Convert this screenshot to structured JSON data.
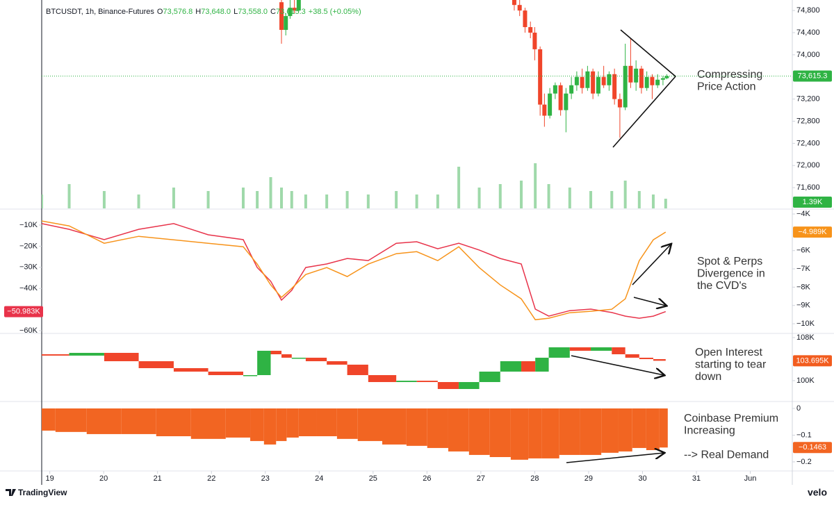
{
  "chart_data": [
    {
      "type": "candlestick",
      "title": "BTCUSDT, 1h, Binance-Futures",
      "ohlc": [
        {
          "key": "O",
          "text": "73,576.8"
        },
        {
          "key": "H",
          "text": "73,648.0"
        },
        {
          "key": "L",
          "text": "73,558.0"
        },
        {
          "key": "C",
          "text": "73,615.3"
        }
      ],
      "change": "+38.5 (+0.05%)",
      "xlim": [
        18.85,
        32.78
      ],
      "x": [
        23.3,
        23.38,
        23.46,
        23.54,
        23.62,
        27.62,
        27.72,
        27.82,
        27.92,
        28.0,
        28.1,
        28.18,
        28.28,
        28.38,
        28.48,
        28.58,
        28.68,
        28.78,
        28.88,
        28.98,
        29.08,
        29.18,
        29.28,
        29.38,
        29.48,
        29.58,
        29.68,
        29.78,
        29.88,
        29.98,
        30.08,
        30.18,
        30.28,
        30.38,
        30.45
      ],
      "open": [
        74950,
        74450,
        74700,
        74850,
        74800,
        75100,
        74900,
        74800,
        74500,
        74400,
        74100,
        73100,
        72900,
        73300,
        73450,
        73000,
        73300,
        73450,
        73600,
        73400,
        73700,
        73300,
        73600,
        73450,
        73650,
        73200,
        73050,
        73800,
        73500,
        73750,
        73400,
        73600,
        73450,
        73550,
        73576.8
      ],
      "high": [
        75100,
        74750,
        75000,
        75100,
        75100,
        75200,
        75000,
        74850,
        74600,
        74500,
        74150,
        73300,
        73400,
        73500,
        73500,
        73400,
        73600,
        73700,
        73750,
        73800,
        73750,
        73700,
        73800,
        73700,
        73750,
        73300,
        74200,
        74300,
        73900,
        73800,
        73700,
        73650,
        73650,
        73620,
        73648
      ],
      "low": [
        74200,
        74350,
        74650,
        74750,
        74780,
        74800,
        74700,
        74400,
        74300,
        73900,
        72900,
        72700,
        72850,
        73200,
        72900,
        72600,
        73200,
        73350,
        73300,
        73350,
        73200,
        73250,
        73400,
        73350,
        73100,
        72500,
        73000,
        73400,
        73350,
        73300,
        73350,
        73200,
        73400,
        73450,
        73558
      ],
      "close": [
        74450,
        74700,
        74850,
        74800,
        75000,
        74900,
        74800,
        74500,
        74400,
        74100,
        73100,
        72900,
        73300,
        73450,
        73000,
        73300,
        73450,
        73600,
        73400,
        73700,
        73300,
        73600,
        73450,
        73650,
        73200,
        73050,
        73800,
        73500,
        73750,
        73400,
        73600,
        73450,
        73550,
        73576.8,
        73615.3
      ],
      "up_color": "#2fb344",
      "down_color": "#f0452a",
      "ylim": [
        71225,
        74990
      ],
      "yticks": [
        {
          "value": 71600,
          "label": "71,600"
        },
        {
          "value": 72000,
          "label": "72,000"
        },
        {
          "value": 72400,
          "label": "72,400"
        },
        {
          "value": 72800,
          "label": "72,800"
        },
        {
          "value": 73200,
          "label": "73,200"
        },
        {
          "value": 73600,
          "label": "73,600"
        },
        {
          "value": 74000,
          "label": "74,000"
        },
        {
          "value": 74400,
          "label": "74,400"
        },
        {
          "value": 74800,
          "label": "74,800"
        }
      ],
      "last_value_label": "73,615.3",
      "volume": {
        "x": [
          18.85,
          19.36,
          20.01,
          20.65,
          21.3,
          21.94,
          22.59,
          22.85,
          23.1,
          23.3,
          23.49,
          23.75,
          24.14,
          24.52,
          24.91,
          25.43,
          25.81,
          26.2,
          26.59,
          26.97,
          27.36,
          27.75,
          28.01,
          28.26,
          28.65,
          29.04,
          29.43,
          29.68,
          29.94,
          30.2,
          30.43
        ],
        "values": [
          2.0,
          3.5,
          2.5,
          2.0,
          3.0,
          2.5,
          3.0,
          2.5,
          4.5,
          3.0,
          2.5,
          2.0,
          2.0,
          2.5,
          2.0,
          2.5,
          2.0,
          2.0,
          6.0,
          3.0,
          3.5,
          4.0,
          6.5,
          3.5,
          3.0,
          2.5,
          2.5,
          4.0,
          2.5,
          2.0,
          1.39
        ],
        "color": "#9fd9aa",
        "last_value_label": "1.39K"
      },
      "annotation": [
        "Compressing",
        "Price Action"
      ]
    },
    {
      "type": "line",
      "xlim": [
        18.85,
        32.78
      ],
      "x": [
        18.85,
        19.36,
        20.01,
        20.65,
        21.3,
        21.94,
        22.59,
        22.85,
        23.1,
        23.3,
        23.49,
        23.75,
        24.14,
        24.52,
        24.91,
        25.43,
        25.81,
        26.2,
        26.59,
        26.97,
        27.36,
        27.75,
        28.01,
        28.26,
        28.65,
        29.04,
        29.43,
        29.68,
        29.94,
        30.2,
        30.43
      ],
      "series": [
        {
          "color": "#e8334a",
          "axis": "y",
          "last_value_label": "−50.983K",
          "values": [
            -9.3,
            -12.0,
            -16.9,
            -12.0,
            -9.3,
            -14.6,
            -16.9,
            -30.1,
            -36.6,
            -45.5,
            -40.9,
            -30.1,
            -28.4,
            -25.8,
            -26.8,
            -18.6,
            -17.9,
            -21.2,
            -18.6,
            -21.8,
            -25.8,
            -28.4,
            -49.8,
            -53.1,
            -50.5,
            -49.8,
            -51.4,
            -53.1,
            -54.1,
            -53.1,
            -50.983
          ]
        },
        {
          "color": "#f7931a",
          "axis": "y2",
          "last_value_label": "−4.989K",
          "values": [
            -4.38,
            -4.65,
            -5.6,
            -5.22,
            -5.41,
            -5.6,
            -5.79,
            -6.74,
            -7.88,
            -8.56,
            -8.07,
            -7.31,
            -6.93,
            -7.42,
            -6.74,
            -6.17,
            -6.06,
            -6.55,
            -5.79,
            -6.93,
            -7.88,
            -8.64,
            -9.78,
            -9.7,
            -9.4,
            -9.32,
            -9.21,
            -8.64,
            -6.55,
            -5.41,
            -4.989
          ]
        }
      ],
      "ylim": [
        -61.3,
        -2.76
      ],
      "yticks": [
        {
          "value": -10,
          "label": "−10K"
        },
        {
          "value": -20,
          "label": "−20K"
        },
        {
          "value": -30,
          "label": "−30K"
        },
        {
          "value": -40,
          "label": "−40K"
        },
        {
          "value": -60,
          "label": "−60K"
        }
      ],
      "y2lim": [
        -10.53,
        -3.77
      ],
      "y2ticks": [
        {
          "value": -4,
          "label": "−4K"
        },
        {
          "value": -6,
          "label": "−6K"
        },
        {
          "value": -7,
          "label": "−7K"
        },
        {
          "value": -8,
          "label": "−8K"
        },
        {
          "value": -9,
          "label": "−9K"
        },
        {
          "value": -10,
          "label": "−10K"
        }
      ],
      "annotation": [
        "Spot & Perps",
        "Divergence in",
        "the CVD's"
      ]
    },
    {
      "type": "step",
      "xlim": [
        18.85,
        32.78
      ],
      "x": [
        18.85,
        19.36,
        20.01,
        20.65,
        21.3,
        21.94,
        22.59,
        22.85,
        23.1,
        23.3,
        23.49,
        23.75,
        24.14,
        24.52,
        24.91,
        25.43,
        25.81,
        26.2,
        26.59,
        26.97,
        27.36,
        27.75,
        28.01,
        28.26,
        28.65,
        29.04,
        29.43,
        29.68,
        29.94,
        30.2,
        30.43
      ],
      "values": [
        104.9,
        104.65,
        105.16,
        103.61,
        102.32,
        101.68,
        101.03,
        101.03,
        105.55,
        104.9,
        104.26,
        104.26,
        103.61,
        102.97,
        101.03,
        99.74,
        99.99,
        99.74,
        98.45,
        99.74,
        101.68,
        103.61,
        101.68,
        104.26,
        106.19,
        105.55,
        106.19,
        104.9,
        104.26,
        104.0,
        103.695
      ],
      "up_color": "#2fb344",
      "down_color": "#f0452a",
      "label_color": "#f25c1e",
      "ylim": [
        96.13,
        108.77
      ],
      "yticks": [
        {
          "value": 108,
          "label": "108K"
        },
        {
          "value": 100,
          "label": "100K"
        }
      ],
      "last_value_label": "103.695K",
      "annotation": [
        "Open Interest",
        "starting to tear",
        "down"
      ]
    },
    {
      "type": "bar",
      "xlim": [
        18.85,
        32.78
      ],
      "xticks": [
        19,
        20,
        21,
        22,
        23,
        24,
        25,
        26,
        27,
        28,
        29,
        30,
        31,
        {
          "value": 32,
          "label": "Jun"
        }
      ],
      "x": [
        18.85,
        19.36,
        20.01,
        20.65,
        21.3,
        21.94,
        22.59,
        22.85,
        23.1,
        23.3,
        23.49,
        23.75,
        24.14,
        24.52,
        24.91,
        25.43,
        25.81,
        26.2,
        26.59,
        26.97,
        27.36,
        27.75,
        28.01,
        28.26,
        28.65,
        29.04,
        29.43,
        29.68,
        29.94,
        30.2,
        30.43
      ],
      "values": [
        -0.083,
        -0.088,
        -0.096,
        -0.096,
        -0.104,
        -0.114,
        -0.109,
        -0.122,
        -0.135,
        -0.122,
        -0.109,
        -0.104,
        -0.104,
        -0.114,
        -0.122,
        -0.135,
        -0.14,
        -0.148,
        -0.161,
        -0.174,
        -0.182,
        -0.192,
        -0.187,
        -0.187,
        -0.174,
        -0.174,
        -0.166,
        -0.161,
        -0.148,
        -0.156,
        -0.1463
      ],
      "color": "#f26522",
      "ylim": [
        -0.234,
        0.026
      ],
      "yticks": [
        0,
        {
          "value": -0.1,
          "label": "−0.1"
        },
        {
          "value": -0.2,
          "label": "−0.2"
        }
      ],
      "last_value_label": "−0.1463",
      "annotation": [
        "Coinbase Premium",
        "Increasing",
        "",
        "--> Real Demand"
      ]
    }
  ],
  "footer": {
    "brand": "TradingView",
    "source": "velo"
  }
}
